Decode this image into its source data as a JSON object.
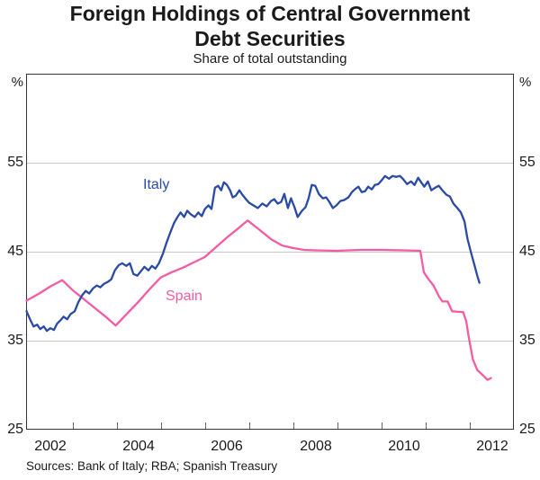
{
  "header": {
    "title_line1": "Foreign Holdings of Central Government",
    "title_line2": "Debt Securities",
    "subtitle": "Share of total outstanding"
  },
  "footer": {
    "sources": "Sources: Bank of Italy; RBA; Spanish Treasury"
  },
  "colors": {
    "italy_line": "#2a4aa5",
    "spain_line": "#f55ba3",
    "gridline": "#c9c9c9",
    "axis_frame": "#333333",
    "tick_mark": "#666666"
  },
  "chart_data": {
    "type": "line",
    "title": "Foreign Holdings of Central Government Debt Securities",
    "subtitle": "Share of total outstanding",
    "grid": "horizontal-only",
    "legend_position": "inline-labels",
    "x_axis": {
      "range": [
        2001.95,
        2013.0
      ],
      "year_tick_marks": [
        2003,
        2004,
        2005,
        2006,
        2007,
        2008,
        2009,
        2010,
        2011,
        2012
      ],
      "year_labels": [
        "2002",
        "2004",
        "2006",
        "2008",
        "2010",
        "2012"
      ]
    },
    "y_axis": {
      "range": [
        25,
        65
      ],
      "unit": "%",
      "gridlines": [
        35,
        45,
        55
      ],
      "tick_labels": [
        "55",
        "45",
        "35",
        "25"
      ]
    },
    "series": [
      {
        "name": "Italy",
        "color": "#2a4aa5",
        "points": [
          [
            2001.96,
            38.3
          ],
          [
            2002.04,
            37.4
          ],
          [
            2002.12,
            36.6
          ],
          [
            2002.2,
            36.8
          ],
          [
            2002.27,
            36.3
          ],
          [
            2002.35,
            36.6
          ],
          [
            2002.42,
            36.1
          ],
          [
            2002.5,
            36.4
          ],
          [
            2002.58,
            36.2
          ],
          [
            2002.65,
            36.9
          ],
          [
            2002.73,
            37.3
          ],
          [
            2002.8,
            37.7
          ],
          [
            2002.88,
            37.4
          ],
          [
            2002.96,
            38.0
          ],
          [
            2003.05,
            38.3
          ],
          [
            2003.13,
            39.3
          ],
          [
            2003.22,
            40.1
          ],
          [
            2003.3,
            40.6
          ],
          [
            2003.38,
            40.3
          ],
          [
            2003.47,
            40.9
          ],
          [
            2003.55,
            41.2
          ],
          [
            2003.63,
            41.0
          ],
          [
            2003.72,
            41.4
          ],
          [
            2003.8,
            41.6
          ],
          [
            2003.88,
            41.9
          ],
          [
            2003.96,
            42.9
          ],
          [
            2004.05,
            43.5
          ],
          [
            2004.13,
            43.7
          ],
          [
            2004.22,
            43.4
          ],
          [
            2004.3,
            43.7
          ],
          [
            2004.38,
            42.5
          ],
          [
            2004.47,
            42.3
          ],
          [
            2004.55,
            42.8
          ],
          [
            2004.63,
            43.3
          ],
          [
            2004.72,
            42.9
          ],
          [
            2004.8,
            43.4
          ],
          [
            2004.88,
            43.1
          ],
          [
            2004.96,
            43.7
          ],
          [
            2005.05,
            44.8
          ],
          [
            2005.13,
            46.0
          ],
          [
            2005.22,
            47.2
          ],
          [
            2005.3,
            48.2
          ],
          [
            2005.38,
            48.9
          ],
          [
            2005.45,
            49.4
          ],
          [
            2005.53,
            48.9
          ],
          [
            2005.6,
            49.6
          ],
          [
            2005.68,
            49.2
          ],
          [
            2005.77,
            48.9
          ],
          [
            2005.85,
            49.4
          ],
          [
            2005.93,
            49.0
          ],
          [
            2006.0,
            49.8
          ],
          [
            2006.08,
            50.2
          ],
          [
            2006.15,
            49.8
          ],
          [
            2006.23,
            52.2
          ],
          [
            2006.3,
            52.4
          ],
          [
            2006.37,
            51.9
          ],
          [
            2006.43,
            52.8
          ],
          [
            2006.5,
            52.5
          ],
          [
            2006.57,
            51.9
          ],
          [
            2006.63,
            51.1
          ],
          [
            2006.7,
            51.3
          ],
          [
            2006.78,
            51.9
          ],
          [
            2006.85,
            51.4
          ],
          [
            2006.93,
            50.9
          ],
          [
            2007.0,
            50.5
          ],
          [
            2007.1,
            50.2
          ],
          [
            2007.2,
            49.9
          ],
          [
            2007.3,
            50.4
          ],
          [
            2007.4,
            50.1
          ],
          [
            2007.5,
            50.7
          ],
          [
            2007.57,
            50.9
          ],
          [
            2007.65,
            50.4
          ],
          [
            2007.73,
            50.6
          ],
          [
            2007.8,
            51.5
          ],
          [
            2007.88,
            49.9
          ],
          [
            2007.95,
            51.0
          ],
          [
            2008.03,
            50.0
          ],
          [
            2008.1,
            48.9
          ],
          [
            2008.2,
            49.6
          ],
          [
            2008.28,
            50.0
          ],
          [
            2008.35,
            51.0
          ],
          [
            2008.42,
            52.5
          ],
          [
            2008.5,
            52.4
          ],
          [
            2008.58,
            51.5
          ],
          [
            2008.67,
            51.0
          ],
          [
            2008.75,
            51.1
          ],
          [
            2008.83,
            50.5
          ],
          [
            2008.9,
            49.9
          ],
          [
            2008.98,
            50.2
          ],
          [
            2009.07,
            50.7
          ],
          [
            2009.15,
            50.8
          ],
          [
            2009.25,
            51.1
          ],
          [
            2009.33,
            51.7
          ],
          [
            2009.42,
            52.1
          ],
          [
            2009.48,
            52.3
          ],
          [
            2009.55,
            51.7
          ],
          [
            2009.63,
            51.8
          ],
          [
            2009.7,
            52.3
          ],
          [
            2009.78,
            52.0
          ],
          [
            2009.85,
            52.5
          ],
          [
            2009.93,
            52.6
          ],
          [
            2010.0,
            53.0
          ],
          [
            2010.08,
            53.5
          ],
          [
            2010.17,
            53.2
          ],
          [
            2010.25,
            53.5
          ],
          [
            2010.33,
            53.4
          ],
          [
            2010.42,
            53.5
          ],
          [
            2010.5,
            53.1
          ],
          [
            2010.58,
            52.6
          ],
          [
            2010.67,
            52.9
          ],
          [
            2010.75,
            52.5
          ],
          [
            2010.83,
            53.3
          ],
          [
            2010.9,
            52.8
          ],
          [
            2010.97,
            52.3
          ],
          [
            2011.05,
            52.9
          ],
          [
            2011.13,
            51.9
          ],
          [
            2011.22,
            52.2
          ],
          [
            2011.3,
            52.4
          ],
          [
            2011.38,
            51.9
          ],
          [
            2011.47,
            51.4
          ],
          [
            2011.55,
            51.2
          ],
          [
            2011.63,
            50.4
          ],
          [
            2011.72,
            49.9
          ],
          [
            2011.8,
            49.4
          ],
          [
            2011.88,
            48.4
          ],
          [
            2011.95,
            46.4
          ],
          [
            2012.03,
            44.9
          ],
          [
            2012.1,
            43.6
          ],
          [
            2012.17,
            42.3
          ],
          [
            2012.22,
            41.5
          ]
        ]
      },
      {
        "name": "Spain",
        "color": "#f55ba3",
        "points": [
          [
            2001.96,
            39.5
          ],
          [
            2002.25,
            40.3
          ],
          [
            2002.5,
            41.1
          ],
          [
            2002.77,
            41.8
          ],
          [
            2003.0,
            40.7
          ],
          [
            2003.25,
            39.7
          ],
          [
            2003.5,
            38.7
          ],
          [
            2003.75,
            37.7
          ],
          [
            2003.98,
            36.7
          ],
          [
            2004.25,
            38.1
          ],
          [
            2004.5,
            39.4
          ],
          [
            2004.75,
            40.8
          ],
          [
            2005.0,
            42.1
          ],
          [
            2005.25,
            42.7
          ],
          [
            2005.5,
            43.2
          ],
          [
            2005.75,
            43.8
          ],
          [
            2006.0,
            44.4
          ],
          [
            2006.25,
            45.5
          ],
          [
            2006.5,
            46.6
          ],
          [
            2006.75,
            47.6
          ],
          [
            2006.97,
            48.5
          ],
          [
            2007.25,
            47.4
          ],
          [
            2007.5,
            46.4
          ],
          [
            2007.75,
            45.7
          ],
          [
            2008.0,
            45.4
          ],
          [
            2008.25,
            45.2
          ],
          [
            2008.5,
            45.15
          ],
          [
            2009.0,
            45.1
          ],
          [
            2009.5,
            45.2
          ],
          [
            2010.0,
            45.2
          ],
          [
            2010.5,
            45.15
          ],
          [
            2010.88,
            45.1
          ],
          [
            2010.96,
            42.7
          ],
          [
            2011.05,
            42.0
          ],
          [
            2011.18,
            41.2
          ],
          [
            2011.3,
            40.0
          ],
          [
            2011.38,
            39.4
          ],
          [
            2011.5,
            39.4
          ],
          [
            2011.6,
            38.3
          ],
          [
            2011.85,
            38.2
          ],
          [
            2011.92,
            37.2
          ],
          [
            2011.98,
            35.3
          ],
          [
            2012.07,
            32.9
          ],
          [
            2012.17,
            31.7
          ],
          [
            2012.3,
            31.1
          ],
          [
            2012.4,
            30.6
          ],
          [
            2012.48,
            30.8
          ]
        ]
      }
    ],
    "source_note": "Sources: Bank of Italy; RBA; Spanish Treasury"
  }
}
